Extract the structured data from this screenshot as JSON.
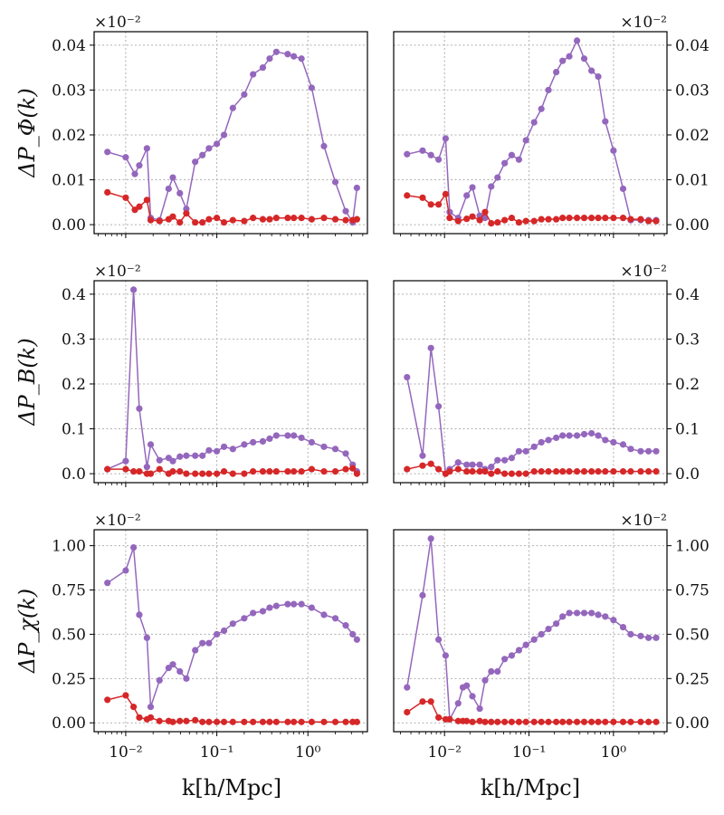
{
  "figure": {
    "xlabel": "k[h/Mpc]",
    "colors": {
      "purple": "#9467bd",
      "red": "#d62728",
      "grid": "#b0b0b0"
    }
  },
  "chart_data": [
    {
      "type": "line",
      "row": 0,
      "col": 0,
      "yaxis": "left",
      "ylabel": "ΔP_Φ(k)",
      "scale_label": "×10⁻²",
      "xscale": "log",
      "xlim": [
        0.0045,
        4.5
      ],
      "ylim": [
        -0.002,
        0.043
      ],
      "yticks": [
        0,
        0.01,
        0.02,
        0.03,
        0.04
      ],
      "ytick_labels": [
        "0.00",
        "0.01",
        "0.02",
        "0.03",
        "0.04"
      ],
      "xticks": [
        0.01,
        0.1,
        1
      ],
      "xtick_labels": [],
      "series": [
        {
          "name": "purple",
          "x": [
            0.0063,
            0.01,
            0.0126,
            0.0141,
            0.0171,
            0.0188,
            0.0235,
            0.0296,
            0.0329,
            0.0393,
            0.0463,
            0.0579,
            0.0695,
            0.082,
            0.1,
            0.12,
            0.15,
            0.2,
            0.25,
            0.32,
            0.38,
            0.45,
            0.6,
            0.7,
            0.85,
            1.1,
            1.5,
            2.0,
            2.6,
            3.1,
            3.45
          ],
          "y": [
            0.0162,
            0.015,
            0.0113,
            0.0132,
            0.017,
            0.0015,
            0.001,
            0.008,
            0.0105,
            0.007,
            0.0035,
            0.014,
            0.0155,
            0.017,
            0.018,
            0.02,
            0.026,
            0.029,
            0.0335,
            0.035,
            0.037,
            0.0385,
            0.038,
            0.0375,
            0.037,
            0.0305,
            0.0175,
            0.0095,
            0.003,
            0.0005,
            0.0082
          ]
        },
        {
          "name": "red",
          "x": [
            0.0063,
            0.01,
            0.0126,
            0.0141,
            0.0171,
            0.0188,
            0.0235,
            0.0296,
            0.0329,
            0.0393,
            0.0463,
            0.0579,
            0.0695,
            0.082,
            0.1,
            0.12,
            0.15,
            0.2,
            0.25,
            0.32,
            0.38,
            0.45,
            0.6,
            0.7,
            0.85,
            1.1,
            1.5,
            2.0,
            2.6,
            3.1,
            3.45
          ],
          "y": [
            0.0072,
            0.006,
            0.0033,
            0.004,
            0.0055,
            0.001,
            0.0008,
            0.0012,
            0.0018,
            0.0005,
            0.0025,
            0.0005,
            0.0005,
            0.0012,
            0.0015,
            0.0005,
            0.001,
            0.0008,
            0.0015,
            0.0012,
            0.0012,
            0.0015,
            0.0015,
            0.0015,
            0.0015,
            0.0012,
            0.0015,
            0.0012,
            0.001,
            0.001,
            0.0012
          ]
        }
      ]
    },
    {
      "type": "line",
      "row": 0,
      "col": 1,
      "yaxis": "right",
      "ylabel": "",
      "scale_label": "×10⁻²",
      "xscale": "log",
      "xlim": [
        0.0025,
        4.3
      ],
      "ylim": [
        -0.002,
        0.043
      ],
      "yticks": [
        0,
        0.01,
        0.02,
        0.03,
        0.04
      ],
      "ytick_labels": [
        "0.00",
        "0.01",
        "0.02",
        "0.03",
        "0.04"
      ],
      "xticks": [
        0.01,
        0.1,
        1
      ],
      "xtick_labels": [],
      "series": [
        {
          "name": "purple",
          "x": [
            0.0036,
            0.0055,
            0.0069,
            0.0085,
            0.0103,
            0.0115,
            0.0145,
            0.0183,
            0.0214,
            0.0261,
            0.0302,
            0.0357,
            0.0424,
            0.0515,
            0.0624,
            0.076,
            0.092,
            0.115,
            0.14,
            0.17,
            0.21,
            0.25,
            0.3,
            0.37,
            0.45,
            0.55,
            0.66,
            0.8,
            1.0,
            1.3,
            1.6,
            2.1,
            2.6,
            3.2
          ],
          "y": [
            0.0157,
            0.0165,
            0.0155,
            0.0145,
            0.0192,
            0.0028,
            0.0015,
            0.0065,
            0.0083,
            0.002,
            0.0015,
            0.0085,
            0.0105,
            0.0137,
            0.0155,
            0.0145,
            0.0188,
            0.0228,
            0.0258,
            0.03,
            0.034,
            0.0365,
            0.0375,
            0.041,
            0.037,
            0.0343,
            0.033,
            0.023,
            0.0165,
            0.008,
            0.001,
            0.001,
            0.001,
            0.001
          ]
        },
        {
          "name": "red",
          "x": [
            0.0036,
            0.0055,
            0.0069,
            0.0085,
            0.0103,
            0.0115,
            0.0145,
            0.0183,
            0.0214,
            0.0261,
            0.0302,
            0.0357,
            0.0424,
            0.0515,
            0.0624,
            0.076,
            0.092,
            0.115,
            0.14,
            0.17,
            0.21,
            0.25,
            0.3,
            0.37,
            0.45,
            0.55,
            0.66,
            0.8,
            1.0,
            1.3,
            1.6,
            2.1,
            2.6,
            3.2
          ],
          "y": [
            0.0065,
            0.006,
            0.0045,
            0.0045,
            0.0068,
            0.0015,
            0.0008,
            0.0013,
            0.0018,
            0.001,
            0.0028,
            0.0003,
            0.0005,
            0.001,
            0.0015,
            0.0005,
            0.0008,
            0.0008,
            0.0012,
            0.0012,
            0.0012,
            0.0015,
            0.0015,
            0.0015,
            0.0015,
            0.0015,
            0.0015,
            0.0015,
            0.0015,
            0.0015,
            0.0012,
            0.0012,
            0.0008,
            0.0008
          ]
        }
      ]
    },
    {
      "type": "line",
      "row": 1,
      "col": 0,
      "yaxis": "left",
      "ylabel": "ΔP_B(k)",
      "scale_label": "×10⁻²",
      "xscale": "log",
      "xlim": [
        0.0045,
        4.5
      ],
      "ylim": [
        -0.02,
        0.43
      ],
      "yticks": [
        0,
        0.1,
        0.2,
        0.3,
        0.4
      ],
      "ytick_labels": [
        "0.0",
        "0.1",
        "0.2",
        "0.3",
        "0.4"
      ],
      "xticks": [
        0.01,
        0.1,
        1
      ],
      "xtick_labels": [],
      "series": [
        {
          "name": "purple",
          "x": [
            0.0063,
            0.01,
            0.0122,
            0.0141,
            0.0171,
            0.0188,
            0.0235,
            0.0296,
            0.0329,
            0.0393,
            0.0463,
            0.0579,
            0.0695,
            0.082,
            0.1,
            0.12,
            0.15,
            0.2,
            0.25,
            0.32,
            0.38,
            0.45,
            0.6,
            0.7,
            0.85,
            1.1,
            1.5,
            2.0,
            2.6,
            3.1,
            3.45
          ],
          "y": [
            0.01,
            0.028,
            0.41,
            0.145,
            0.015,
            0.065,
            0.03,
            0.035,
            0.028,
            0.038,
            0.04,
            0.04,
            0.04,
            0.052,
            0.05,
            0.06,
            0.055,
            0.065,
            0.07,
            0.072,
            0.078,
            0.085,
            0.085,
            0.085,
            0.08,
            0.07,
            0.06,
            0.055,
            0.045,
            0.02,
            0.005
          ]
        },
        {
          "name": "red",
          "x": [
            0.0063,
            0.01,
            0.0122,
            0.0141,
            0.0171,
            0.0188,
            0.0235,
            0.0296,
            0.0329,
            0.0393,
            0.0463,
            0.0579,
            0.0695,
            0.082,
            0.1,
            0.12,
            0.15,
            0.2,
            0.25,
            0.32,
            0.38,
            0.45,
            0.6,
            0.7,
            0.85,
            1.1,
            1.5,
            2.0,
            2.6,
            3.1,
            3.45
          ],
          "y": [
            0.01,
            0.01,
            0.005,
            0.005,
            0.0,
            0.0,
            0.01,
            0.0,
            0.005,
            0.005,
            0.0,
            0.0,
            0.0,
            0.0,
            0.0,
            0.005,
            0.0,
            0.0,
            0.005,
            0.005,
            0.005,
            0.005,
            0.005,
            0.005,
            0.005,
            0.01,
            0.005,
            0.005,
            0.01,
            0.012,
            0.0
          ]
        }
      ]
    },
    {
      "type": "line",
      "row": 1,
      "col": 1,
      "yaxis": "right",
      "ylabel": "",
      "scale_label": "×10⁻²",
      "xscale": "log",
      "xlim": [
        0.0025,
        4.3
      ],
      "ylim": [
        -0.02,
        0.43
      ],
      "yticks": [
        0,
        0.1,
        0.2,
        0.3,
        0.4
      ],
      "ytick_labels": [
        "0.0",
        "0.1",
        "0.2",
        "0.3",
        "0.4"
      ],
      "xticks": [
        0.01,
        0.1,
        1
      ],
      "xtick_labels": [],
      "series": [
        {
          "name": "purple",
          "x": [
            0.0036,
            0.0055,
            0.0069,
            0.0085,
            0.0103,
            0.0115,
            0.0145,
            0.0183,
            0.0214,
            0.0261,
            0.0302,
            0.0357,
            0.0424,
            0.0515,
            0.0624,
            0.076,
            0.092,
            0.115,
            0.14,
            0.17,
            0.21,
            0.25,
            0.3,
            0.37,
            0.45,
            0.55,
            0.66,
            0.8,
            1.0,
            1.3,
            1.6,
            2.1,
            2.6,
            3.2
          ],
          "y": [
            0.215,
            0.04,
            0.28,
            0.15,
            0.0,
            0.01,
            0.025,
            0.02,
            0.02,
            0.02,
            0.01,
            0.015,
            0.03,
            0.03,
            0.035,
            0.05,
            0.05,
            0.06,
            0.07,
            0.075,
            0.08,
            0.085,
            0.085,
            0.085,
            0.088,
            0.09,
            0.085,
            0.075,
            0.07,
            0.065,
            0.055,
            0.05,
            0.05,
            0.05
          ]
        },
        {
          "name": "red",
          "x": [
            0.0036,
            0.0055,
            0.0069,
            0.0085,
            0.0103,
            0.0115,
            0.0145,
            0.0183,
            0.0214,
            0.0261,
            0.0302,
            0.0357,
            0.0424,
            0.0515,
            0.0624,
            0.076,
            0.092,
            0.115,
            0.14,
            0.17,
            0.21,
            0.25,
            0.3,
            0.37,
            0.45,
            0.55,
            0.66,
            0.8,
            1.0,
            1.3,
            1.6,
            2.1,
            2.6,
            3.2
          ],
          "y": [
            0.01,
            0.018,
            0.022,
            0.01,
            0.0,
            0.005,
            0.01,
            0.005,
            0.005,
            0.005,
            0.005,
            0.0,
            0.005,
            0.0,
            0.0,
            0.0,
            0.0,
            0.005,
            0.005,
            0.005,
            0.005,
            0.005,
            0.005,
            0.005,
            0.005,
            0.005,
            0.005,
            0.005,
            0.005,
            0.005,
            0.005,
            0.005,
            0.005,
            0.005
          ]
        }
      ]
    },
    {
      "type": "line",
      "row": 2,
      "col": 0,
      "yaxis": "left",
      "ylabel": "ΔP_χ(k)",
      "scale_label": "×10⁻²",
      "xscale": "log",
      "xlim": [
        0.0045,
        4.5
      ],
      "ylim": [
        -0.05,
        1.09
      ],
      "yticks": [
        0,
        0.25,
        0.5,
        0.75,
        1.0
      ],
      "ytick_labels": [
        "0.00",
        "0.25",
        "0.50",
        "0.75",
        "1.00"
      ],
      "xticks": [
        0.01,
        0.1,
        1
      ],
      "xtick_labels": [
        "10⁻²",
        "10⁻¹",
        "10⁰"
      ],
      "series": [
        {
          "name": "purple",
          "x": [
            0.0063,
            0.01,
            0.0122,
            0.0141,
            0.0171,
            0.0188,
            0.0235,
            0.0296,
            0.0329,
            0.0393,
            0.0463,
            0.0579,
            0.0695,
            0.082,
            0.1,
            0.12,
            0.15,
            0.2,
            0.25,
            0.32,
            0.38,
            0.45,
            0.6,
            0.7,
            0.85,
            1.1,
            1.5,
            2.0,
            2.6,
            3.1,
            3.45
          ],
          "y": [
            0.79,
            0.86,
            0.99,
            0.61,
            0.48,
            0.09,
            0.24,
            0.31,
            0.33,
            0.29,
            0.25,
            0.41,
            0.45,
            0.45,
            0.5,
            0.52,
            0.56,
            0.59,
            0.62,
            0.63,
            0.65,
            0.66,
            0.67,
            0.67,
            0.67,
            0.65,
            0.61,
            0.59,
            0.55,
            0.5,
            0.47
          ]
        },
        {
          "name": "red",
          "x": [
            0.0063,
            0.01,
            0.0122,
            0.0141,
            0.0171,
            0.0188,
            0.0235,
            0.0296,
            0.0329,
            0.0393,
            0.0463,
            0.0579,
            0.0695,
            0.082,
            0.1,
            0.12,
            0.15,
            0.2,
            0.25,
            0.32,
            0.38,
            0.45,
            0.6,
            0.7,
            0.85,
            1.1,
            1.5,
            2.0,
            2.6,
            3.1,
            3.45
          ],
          "y": [
            0.13,
            0.155,
            0.09,
            0.03,
            0.02,
            0.03,
            0.01,
            0.01,
            0.005,
            0.01,
            0.01,
            0.015,
            0.005,
            0.005,
            0.005,
            0.005,
            0.005,
            0.005,
            0.005,
            0.005,
            0.005,
            0.005,
            0.005,
            0.005,
            0.005,
            0.005,
            0.005,
            0.005,
            0.005,
            0.005,
            0.005
          ]
        }
      ]
    },
    {
      "type": "line",
      "row": 2,
      "col": 1,
      "yaxis": "right",
      "ylabel": "",
      "scale_label": "×10⁻²",
      "xscale": "log",
      "xlim": [
        0.0025,
        4.3
      ],
      "ylim": [
        -0.05,
        1.09
      ],
      "yticks": [
        0,
        0.25,
        0.5,
        0.75,
        1.0
      ],
      "ytick_labels": [
        "0.00",
        "0.25",
        "0.50",
        "0.75",
        "1.00"
      ],
      "xticks": [
        0.01,
        0.1,
        1
      ],
      "xtick_labels": [
        "10⁻²",
        "10⁻¹",
        "10⁰"
      ],
      "series": [
        {
          "name": "purple",
          "x": [
            0.0036,
            0.0055,
            0.0069,
            0.0085,
            0.0103,
            0.0115,
            0.0145,
            0.0165,
            0.0183,
            0.0214,
            0.0261,
            0.0302,
            0.0357,
            0.0424,
            0.0515,
            0.0624,
            0.076,
            0.092,
            0.115,
            0.14,
            0.17,
            0.21,
            0.25,
            0.3,
            0.37,
            0.45,
            0.55,
            0.66,
            0.8,
            1.0,
            1.3,
            1.6,
            2.1,
            2.6,
            3.2
          ],
          "y": [
            0.2,
            0.72,
            1.04,
            0.47,
            0.38,
            0.02,
            0.11,
            0.2,
            0.21,
            0.15,
            0.08,
            0.24,
            0.29,
            0.29,
            0.36,
            0.38,
            0.41,
            0.44,
            0.47,
            0.5,
            0.53,
            0.56,
            0.6,
            0.62,
            0.62,
            0.62,
            0.62,
            0.61,
            0.6,
            0.58,
            0.54,
            0.5,
            0.49,
            0.48,
            0.48
          ]
        },
        {
          "name": "red",
          "x": [
            0.0036,
            0.0055,
            0.0069,
            0.0085,
            0.0103,
            0.0115,
            0.0145,
            0.0165,
            0.0183,
            0.0214,
            0.0261,
            0.0302,
            0.0357,
            0.0424,
            0.0515,
            0.0624,
            0.076,
            0.092,
            0.115,
            0.14,
            0.17,
            0.21,
            0.25,
            0.3,
            0.37,
            0.45,
            0.55,
            0.66,
            0.8,
            1.0,
            1.3,
            1.6,
            2.1,
            2.6,
            3.2
          ],
          "y": [
            0.06,
            0.12,
            0.12,
            0.03,
            0.02,
            0.02,
            0.01,
            0.01,
            0.01,
            0.005,
            0.01,
            0.005,
            0.005,
            0.005,
            0.005,
            0.005,
            0.005,
            0.005,
            0.005,
            0.005,
            0.005,
            0.005,
            0.005,
            0.005,
            0.005,
            0.005,
            0.005,
            0.005,
            0.005,
            0.005,
            0.005,
            0.005,
            0.005,
            0.005,
            0.005
          ]
        }
      ]
    }
  ]
}
